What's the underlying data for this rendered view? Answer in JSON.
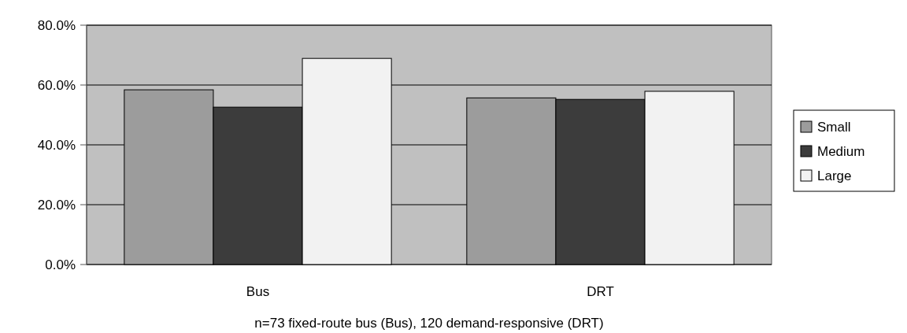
{
  "chart_data": {
    "type": "bar",
    "categories": [
      "Bus",
      "DRT"
    ],
    "series": [
      {
        "name": "Small",
        "color": "#9c9c9c",
        "values": [
          58.4,
          55.7
        ]
      },
      {
        "name": "Medium",
        "color": "#3c3c3c",
        "values": [
          52.6,
          55.2
        ]
      },
      {
        "name": "Large",
        "color": "#f2f2f2",
        "values": [
          68.9,
          57.9
        ]
      }
    ],
    "ylim": [
      0,
      80
    ],
    "yticks": [
      {
        "value": 0,
        "label": "0.0%"
      },
      {
        "value": 20,
        "label": "20.0%"
      },
      {
        "value": 40,
        "label": "40.0%"
      },
      {
        "value": 60,
        "label": "60.0%"
      },
      {
        "value": 80,
        "label": "80.0%"
      }
    ],
    "grid": "y",
    "legend": "right",
    "annotations": [
      "n=73 fixed-route bus (Bus), 120 demand-responsive (DRT)"
    ]
  }
}
